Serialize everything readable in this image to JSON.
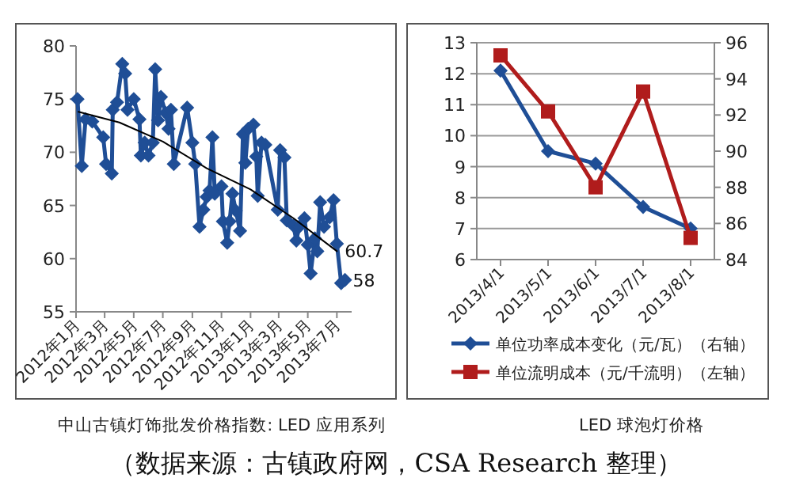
{
  "chart_data": [
    {
      "type": "line",
      "title": "中山古镇灯饰批发价格指数: LED 应用系列",
      "annotations": [
        "（数据来源：古镇政府网，CSA Research 整理）"
      ],
      "xlim": [
        "2012-01-01",
        "2013-08-01"
      ],
      "xticks": [
        {
          "value": "2012-01",
          "label": "2012年1月"
        },
        {
          "value": "2012-03",
          "label": "2012年3月"
        },
        {
          "value": "2012-05",
          "label": "2012年5月"
        },
        {
          "value": "2012-07",
          "label": "2012年7月"
        },
        {
          "value": "2012-09",
          "label": "2012年9月"
        },
        {
          "value": "2012-11",
          "label": "2012年11月"
        },
        {
          "value": "2013-01",
          "label": "2013年1月"
        },
        {
          "value": "2013-03",
          "label": "2013年3月"
        },
        {
          "value": "2013-05",
          "label": "2013年5月"
        },
        {
          "value": "2013-07",
          "label": "2013年7月"
        }
      ],
      "ylim": [
        55,
        80
      ],
      "yticks": [
        55,
        60,
        65,
        70,
        75,
        80
      ],
      "marker": "diamond",
      "line_style": "solid",
      "series": [
        {
          "color": "#1f4e96",
          "x": [
            "2012-01-04",
            "2012-01-13",
            "2012-01-21",
            "2012-02-04",
            "2012-02-27",
            "2012-03-04",
            "2012-03-16",
            "2012-03-18",
            "2012-03-27",
            "2012-04-07",
            "2012-04-13",
            "2012-04-18",
            "2012-05-01",
            "2012-05-13",
            "2012-05-16",
            "2012-05-24",
            "2012-06-01",
            "2012-06-10",
            "2012-06-15",
            "2012-06-21",
            "2012-06-27",
            "2012-07-07",
            "2012-07-13",
            "2012-07-18",
            "2012-07-24",
            "2012-08-21",
            "2012-09-01",
            "2012-09-07",
            "2012-09-16",
            "2012-09-24",
            "2012-10-01",
            "2012-10-07",
            "2012-10-13",
            "2012-10-18",
            "2012-11-01",
            "2012-11-04",
            "2012-11-13",
            "2012-11-18",
            "2012-11-24",
            "2012-12-01",
            "2012-12-10",
            "2012-12-16",
            "2012-12-21",
            "2012-12-27",
            "2013-01-07",
            "2013-01-13",
            "2013-01-16",
            "2013-01-24",
            "2013-02-01",
            "2013-02-27",
            "2013-03-04",
            "2013-03-13",
            "2013-03-18",
            "2013-04-01",
            "2013-04-07",
            "2013-04-13",
            "2013-04-24",
            "2013-05-01",
            "2013-05-07",
            "2013-05-16",
            "2013-05-21",
            "2013-05-27",
            "2013-06-04",
            "2013-06-16",
            "2013-06-24",
            "2013-07-01",
            "2013-07-10",
            "2013-07-18"
          ],
          "values": [
            75.0,
            68.7,
            73.1,
            72.9,
            71.4,
            68.9,
            68.0,
            74.0,
            74.7,
            78.3,
            77.4,
            74.0,
            75.0,
            73.1,
            69.7,
            70.9,
            69.7,
            70.9,
            77.8,
            73.0,
            75.2,
            73.7,
            72.2,
            74.0,
            68.9,
            74.2,
            70.9,
            68.9,
            63.0,
            64.6,
            65.8,
            66.4,
            71.4,
            66.1,
            66.8,
            63.5,
            61.5,
            63.5,
            66.1,
            64.5,
            62.6,
            71.7,
            69.0,
            72.2,
            72.6,
            69.6,
            65.9,
            70.9,
            70.7,
            64.6,
            70.2,
            69.5,
            63.6,
            63.1,
            61.7,
            63.0,
            63.8,
            61.3,
            58.6,
            61.9,
            60.7,
            65.3,
            63.0,
            63.9,
            65.5,
            61.4,
            57.7,
            58
          ],
          "value_labels": [
            null,
            null,
            null,
            null,
            null,
            null,
            null,
            null,
            null,
            null,
            null,
            null,
            null,
            null,
            null,
            null,
            null,
            null,
            null,
            null,
            null,
            null,
            null,
            null,
            null,
            null,
            null,
            null,
            null,
            null,
            null,
            null,
            null,
            null,
            null,
            null,
            null,
            null,
            null,
            null,
            null,
            null,
            null,
            null,
            null,
            null,
            null,
            null,
            null,
            null,
            null,
            null,
            null,
            null,
            null,
            null,
            null,
            null,
            null,
            null,
            null,
            null,
            null,
            null,
            null,
            null,
            null,
            "58"
          ]
        },
        {
          "color": "#000000",
          "marker": "none",
          "x": [
            "2012-01-06",
            "2012-04-01",
            "2012-07-01",
            "2012-10-01",
            "2013-01-01",
            "2013-04-01",
            "2013-07-01"
          ],
          "values": [
            73.8,
            72.8,
            71.0,
            68.5,
            66.5,
            63.8,
            60.7
          ],
          "value_labels": [
            null,
            null,
            null,
            null,
            null,
            null,
            "60.7"
          ]
        }
      ]
    },
    {
      "type": "line",
      "title": "LED 球泡灯价格",
      "categories": [
        "2013/4/1",
        "2013/5/1",
        "2013/6/1",
        "2013/7/1",
        "2013/8/1"
      ],
      "ylim": [
        6,
        13
      ],
      "yticks": [
        6,
        7,
        8,
        9,
        10,
        11,
        12,
        13
      ],
      "y2lim": [
        84,
        96
      ],
      "y2ticks": [
        84,
        86,
        88,
        90,
        92,
        94,
        96
      ],
      "grid": "y",
      "legend": "bottom",
      "series": [
        {
          "name": "单位功率成本变化（元/瓦）（右轴）",
          "color": "#1f4e96",
          "marker": "diamond",
          "values": [
            12.1,
            9.5,
            9.1,
            7.7,
            7.0
          ]
        },
        {
          "name": "单位流明成本（元/千流明）（左轴）",
          "color": "#b01c1c",
          "marker": "square",
          "axis": "y2",
          "values": [
            95.3,
            92.2,
            88.0,
            93.3,
            85.2
          ]
        }
      ]
    }
  ]
}
